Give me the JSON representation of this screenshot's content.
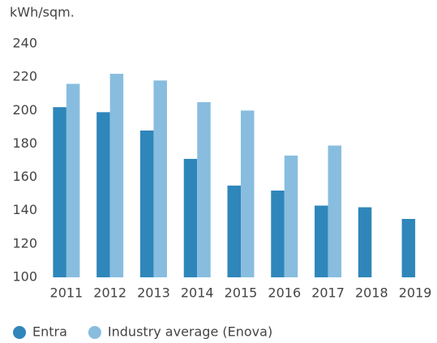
{
  "chart_data": {
    "type": "bar",
    "y_label": "kWh/sqm.",
    "categories": [
      "2011",
      "2012",
      "2013",
      "2014",
      "2015",
      "2016",
      "2017",
      "2018",
      "2019"
    ],
    "series": [
      {
        "name": "Entra",
        "color": "#2f86ba",
        "values": [
          202,
          199,
          188,
          171,
          155,
          152,
          143,
          142,
          135
        ]
      },
      {
        "name": "Industry average (Enova)",
        "color": "#88bddf",
        "values": [
          216,
          222,
          218,
          205,
          200,
          173,
          179,
          null,
          null
        ]
      }
    ],
    "ylim": [
      100,
      240
    ],
    "yticks": [
      100,
      120,
      140,
      160,
      180,
      200,
      220,
      240
    ],
    "grid": false
  }
}
